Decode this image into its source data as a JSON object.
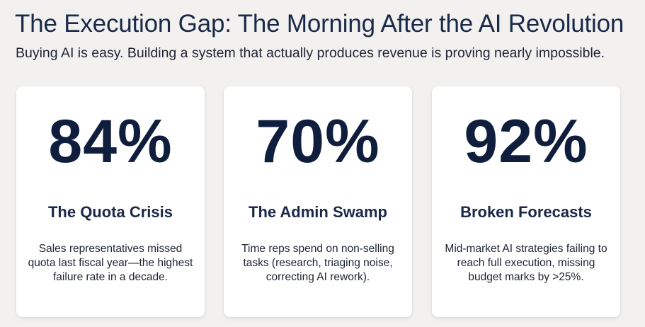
{
  "header": {
    "title": "The Execution Gap: The Morning After the AI Revolution",
    "subtitle": "Buying AI is easy. Building a system that actually produces revenue is proving nearly impossible."
  },
  "cards": [
    {
      "stat": "84%",
      "heading": "The Quota Crisis",
      "description": "Sales representatives missed quota last fiscal year—the highest failure rate in a decade."
    },
    {
      "stat": "70%",
      "heading": "The Admin Swamp",
      "description": "Time reps spend on non-selling tasks (research, triaging noise, correcting AI rework)."
    },
    {
      "stat": "92%",
      "heading": "Broken Forecasts",
      "description": "Mid-market AI strategies failing to reach full execution, missing budget marks by >25%."
    }
  ],
  "colors": {
    "background": "#f2f1ef",
    "card": "#ffffff",
    "stat": "#0f1e3d",
    "title": "#1b2a49"
  }
}
